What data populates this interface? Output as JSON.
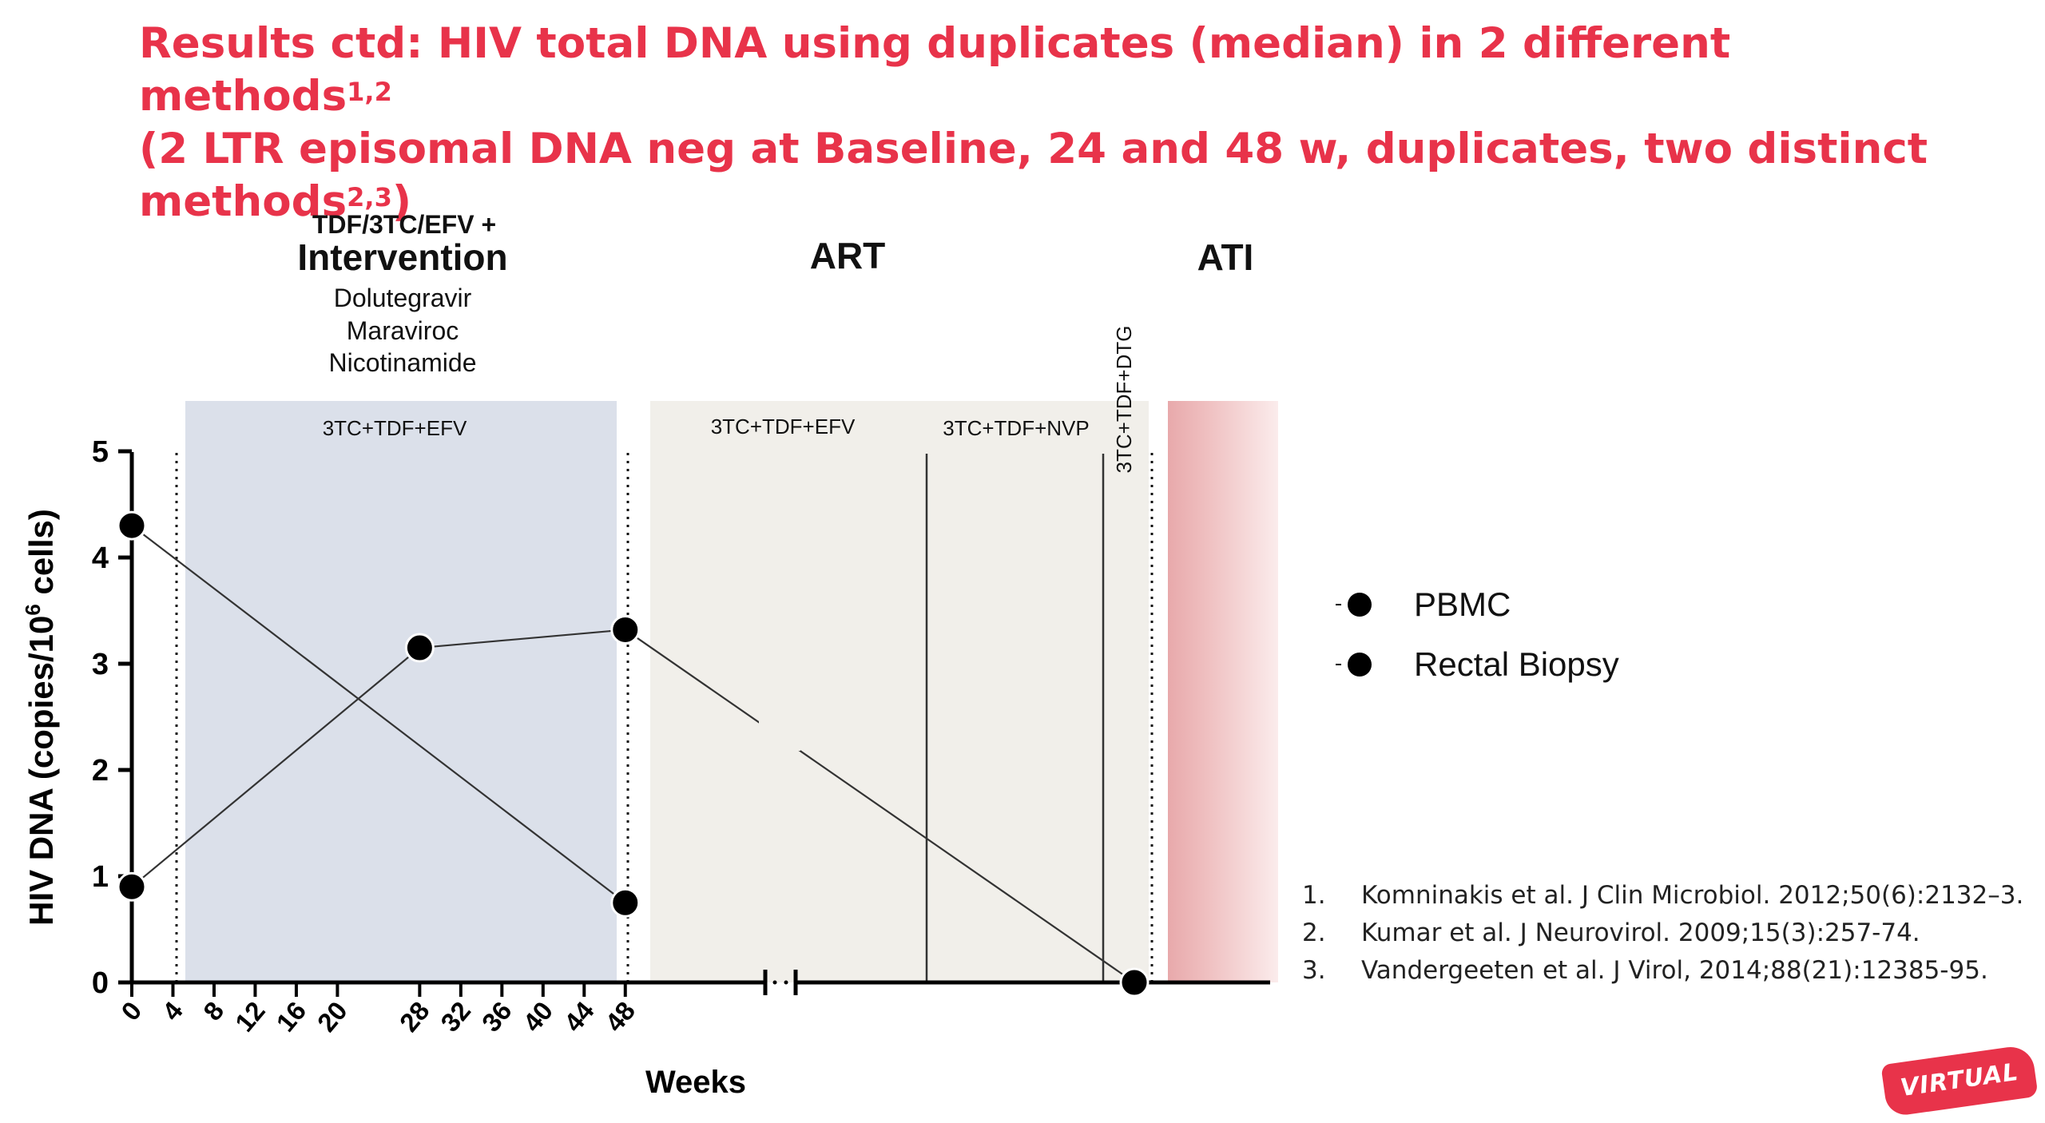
{
  "title": {
    "line1": "Results ctd:  HIV total DNA using duplicates (median) in 2 different methods",
    "line1_sup": "1,2",
    "line2": "(2 LTR episomal DNA neg at Baseline, 24 and 48 w, duplicates, two distinct",
    "line3": "methods",
    "line3_sup": "2,3",
    "line3_end": ")"
  },
  "phases": {
    "intervention_pre": "TDF/3TC/EFV +",
    "intervention": "Intervention",
    "drugs": [
      "Dolutegravir",
      "Maraviroc",
      "Nicotinamide"
    ],
    "art": "ART",
    "ati": "ATI",
    "regimen1": "3TC+TDF+EFV",
    "regimen2": "3TC+TDF+EFV",
    "regimen3": "3TC+TDF+NVP",
    "regimen4": "3TC+TDF+DTG"
  },
  "chart_data": {
    "type": "line",
    "ylabel": "HIV DNA (copies/10",
    "ylabel_sup": "6",
    "ylabel_end": " cells)",
    "xlabel": "Weeks",
    "ylim": [
      0,
      5
    ],
    "yticks": [
      "0",
      "1",
      "2",
      "3",
      "4",
      "5"
    ],
    "xticks": [
      "0",
      "4",
      "8",
      "12",
      "16",
      "20",
      "28",
      "32",
      "36",
      "40",
      "44",
      "48"
    ],
    "x_axis_break": "after week 48",
    "series": [
      {
        "name": "PBMC",
        "points": [
          {
            "x": "0",
            "y": 4.3
          },
          {
            "x": "48",
            "y": 0.75
          }
        ]
      },
      {
        "name": "Rectal Biopsy",
        "points": [
          {
            "x": "0",
            "y": 0.9
          },
          {
            "x": "28",
            "y": 3.15
          },
          {
            "x": "48",
            "y": 3.32
          },
          {
            "x": "end of ART",
            "y": 0
          }
        ]
      }
    ],
    "legend_position": "right",
    "colors": {
      "intervention_band": "#dbe0ea",
      "art_band": "#f1efea",
      "ati_band": "#ebb4b6",
      "lines": "#333333",
      "markers": "#000000"
    }
  },
  "references": [
    {
      "num": "1.",
      "text": "Komninakis et al. J Clin Microbiol. 2012;50(6):2132–3."
    },
    {
      "num": "2.",
      "text": "Kumar et al. J Neurovirol. 2009;15(3):257-74."
    },
    {
      "num": "3.",
      "text": "Vandergeeten et al. J Virol, 2014;88(21):12385-95."
    }
  ],
  "badge": "VIRTUAL"
}
